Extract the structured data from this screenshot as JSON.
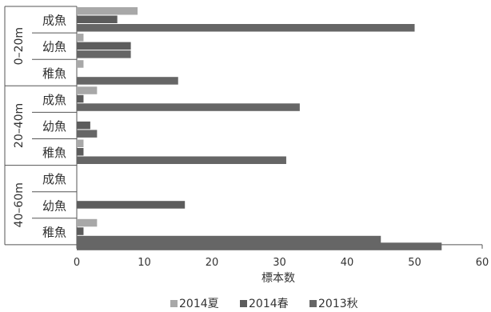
{
  "chart_data": {
    "type": "bar",
    "orientation": "horizontal",
    "xlabel": "標本数",
    "xlim": [
      0,
      60
    ],
    "xticks": [
      0,
      10,
      20,
      30,
      40,
      50,
      60
    ],
    "grid": false,
    "legend_position": "bottom",
    "groups": [
      {
        "label": "0–20m",
        "categories": [
          "成魚",
          "幼魚",
          "稚魚"
        ]
      },
      {
        "label": "20–40m",
        "categories": [
          "成魚",
          "幼魚",
          "稚魚"
        ]
      },
      {
        "label": "40–60m",
        "categories": [
          "成魚",
          "幼魚",
          "稚魚"
        ]
      }
    ],
    "series": [
      {
        "name": "2014夏",
        "color": "#a8a8a8",
        "values": [
          9,
          1,
          1,
          3,
          0,
          1,
          0,
          0,
          3
        ]
      },
      {
        "name": "2014春",
        "color": "#5c5c5c",
        "values": [
          6,
          8,
          0,
          1,
          2,
          1,
          0,
          16,
          1
        ]
      },
      {
        "name": "2013秋",
        "color": "#666666",
        "values": [
          50,
          8,
          15,
          33,
          3,
          31,
          0,
          0,
          45
        ]
      }
    ],
    "extra_bars": [
      {
        "group": 2,
        "category": "稚魚",
        "series": "2013秋",
        "value": 54
      }
    ]
  }
}
